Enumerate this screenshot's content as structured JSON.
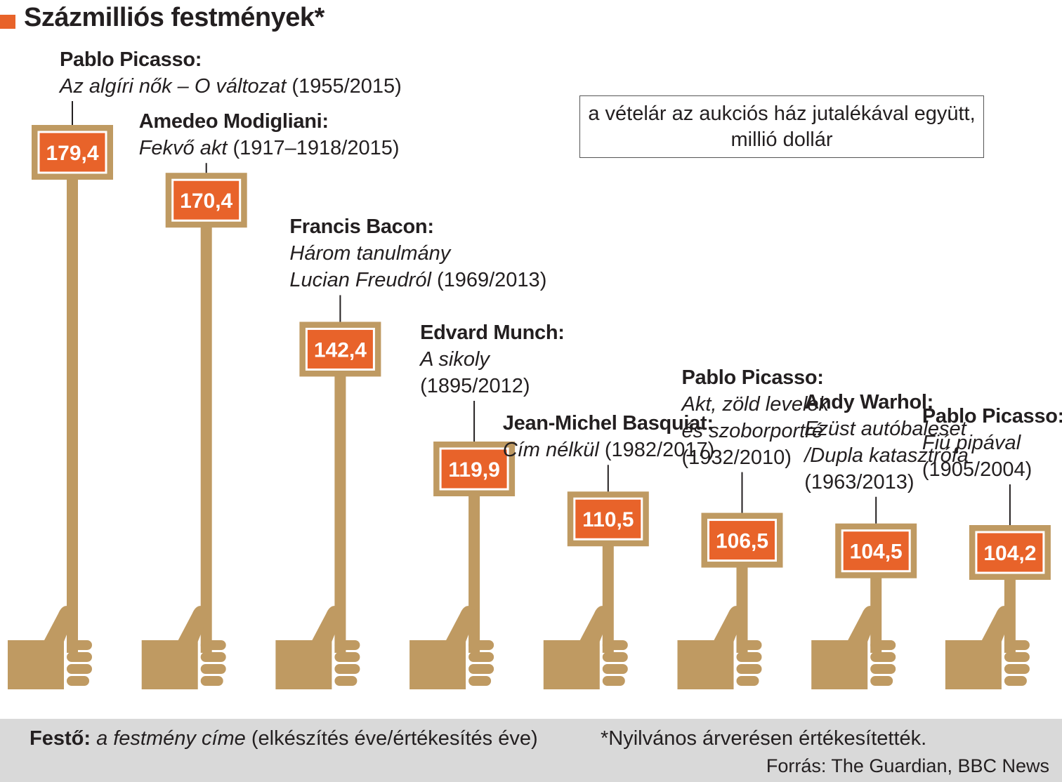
{
  "header": {
    "title": "Százmilliós festmények*"
  },
  "note": {
    "line1": "a vételár az aukciós ház jutalékával együtt,",
    "line2": "millió dollár"
  },
  "chart_data": {
    "type": "bar",
    "title": "Százmilliós festmények*",
    "unit": "millió dollár",
    "categories": [
      "Pablo Picasso: Az algíri nők – O változat (1955/2015)",
      "Amedeo Modigliani: Fekvő akt (1917–1918/2015)",
      "Francis Bacon: Három tanulmány Lucian Freudról (1969/2013)",
      "Edvard Munch: A sikoly (1895/2012)",
      "Jean-Michel Basquiat: Cím nélkül (1982/2017)",
      "Pablo Picasso: Akt, zöld levelek és szoborportré (1932/2010)",
      "Andy Warhol: Ezüst autóbaleset /Dupla katasztrófa (1963/2013)",
      "Pablo Picasso: Fiú pipával (1905/2004)"
    ],
    "values": [
      179.4,
      170.4,
      142.4,
      119.9,
      110.5,
      106.5,
      104.5,
      104.2
    ],
    "value_labels": [
      "179,4",
      "170,4",
      "142,4",
      "119,9",
      "110,5",
      "106,5",
      "104,5",
      "104,2"
    ],
    "items": [
      {
        "artist": "Pablo Picasso:",
        "lines": [
          [
            {
              "t": "Az algíri nők – O változat",
              "i": true
            },
            {
              "t": " (1955/2015)",
              "i": false
            }
          ]
        ]
      },
      {
        "artist": "Amedeo Modigliani:",
        "lines": [
          [
            {
              "t": "Fekvő akt",
              "i": true
            },
            {
              "t": " (1917–1918/2015)",
              "i": false
            }
          ]
        ]
      },
      {
        "artist": "Francis Bacon:",
        "lines": [
          [
            {
              "t": "Három tanulmány",
              "i": true
            }
          ],
          [
            {
              "t": "Lucian Freudról",
              "i": true
            },
            {
              "t": " (1969/2013)",
              "i": false
            }
          ]
        ]
      },
      {
        "artist": "Edvard Munch:",
        "lines": [
          [
            {
              "t": "A sikoly",
              "i": true
            }
          ],
          [
            {
              "t": "(1895/2012)",
              "i": false
            }
          ]
        ]
      },
      {
        "artist": "Jean-Michel Basquiat:",
        "lines": [
          [
            {
              "t": "Cím nélkül",
              "i": true
            },
            {
              "t": " (1982/2017)",
              "i": false
            }
          ]
        ]
      },
      {
        "artist": "Pablo Picasso:",
        "lines": [
          [
            {
              "t": "Akt, zöld levelek",
              "i": true
            }
          ],
          [
            {
              "t": "és szoborportré",
              "i": true
            }
          ],
          [
            {
              "t": "(1932/2010)",
              "i": false
            }
          ]
        ]
      },
      {
        "artist": "Andy Warhol:",
        "lines": [
          [
            {
              "t": "Ezüst autóbaleset",
              "i": true
            }
          ],
          [
            {
              "t": "/Dupla katasztrófa",
              "i": true
            }
          ],
          [
            {
              "t": "(1963/2013)",
              "i": false
            }
          ]
        ]
      },
      {
        "artist": "Pablo Picasso:",
        "lines": [
          [
            {
              "t": "Fiú pipával",
              "i": true
            }
          ],
          [
            {
              "t": "(1905/2004)",
              "i": false
            }
          ]
        ]
      }
    ],
    "colors": {
      "stick": "#bf9a62",
      "sign": "#e8632a",
      "frame": "#bf9a62"
    }
  },
  "footer": {
    "legend_artist": "Festő:",
    "legend_title": "a festmény címe",
    "legend_rest": " (elkészítés éve/értékesítés éve)",
    "footnote": "*Nyilvános árverésen értékesítették.",
    "source": "Forrás: The Guardian, BBC News"
  }
}
